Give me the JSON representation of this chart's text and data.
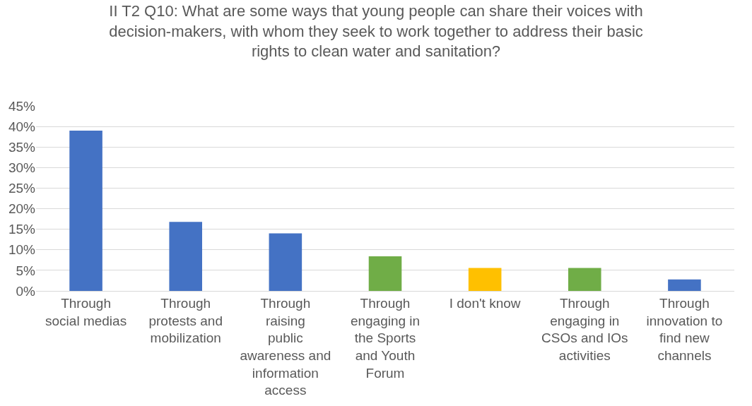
{
  "chart_data": {
    "type": "bar",
    "title": "II T2 Q10: What are some ways that young people can share their voices with decision-makers, with whom they seek to work together to address their basic rights to clean water and sanitation?",
    "categories": [
      "Through social medias",
      "Through protests and mobilization",
      "Through raising public awareness and information access",
      "Through engaging in the Sports and Youth Forum",
      "I don't know",
      "Through engaging in CSOs and IOs activities",
      "Through innovation to find new channels"
    ],
    "values": [
      39,
      16.8,
      14,
      8.4,
      5.6,
      5.6,
      2.8
    ],
    "colors": [
      "#4472c4",
      "#4472c4",
      "#4472c4",
      "#70ad47",
      "#ffc000",
      "#70ad47",
      "#4472c4"
    ],
    "ylim": [
      0,
      45
    ],
    "yticks": [
      {
        "value": 0,
        "label": "0%"
      },
      {
        "value": 5,
        "label": "5%"
      },
      {
        "value": 10,
        "label": "10%"
      },
      {
        "value": 15,
        "label": "15%"
      },
      {
        "value": 20,
        "label": "20%"
      },
      {
        "value": 25,
        "label": "25%"
      },
      {
        "value": 30,
        "label": "30%"
      },
      {
        "value": 35,
        "label": "35%"
      },
      {
        "value": 40,
        "label": "40%"
      },
      {
        "value": 45,
        "label": "45%"
      }
    ],
    "grid": "y",
    "legend": false
  }
}
